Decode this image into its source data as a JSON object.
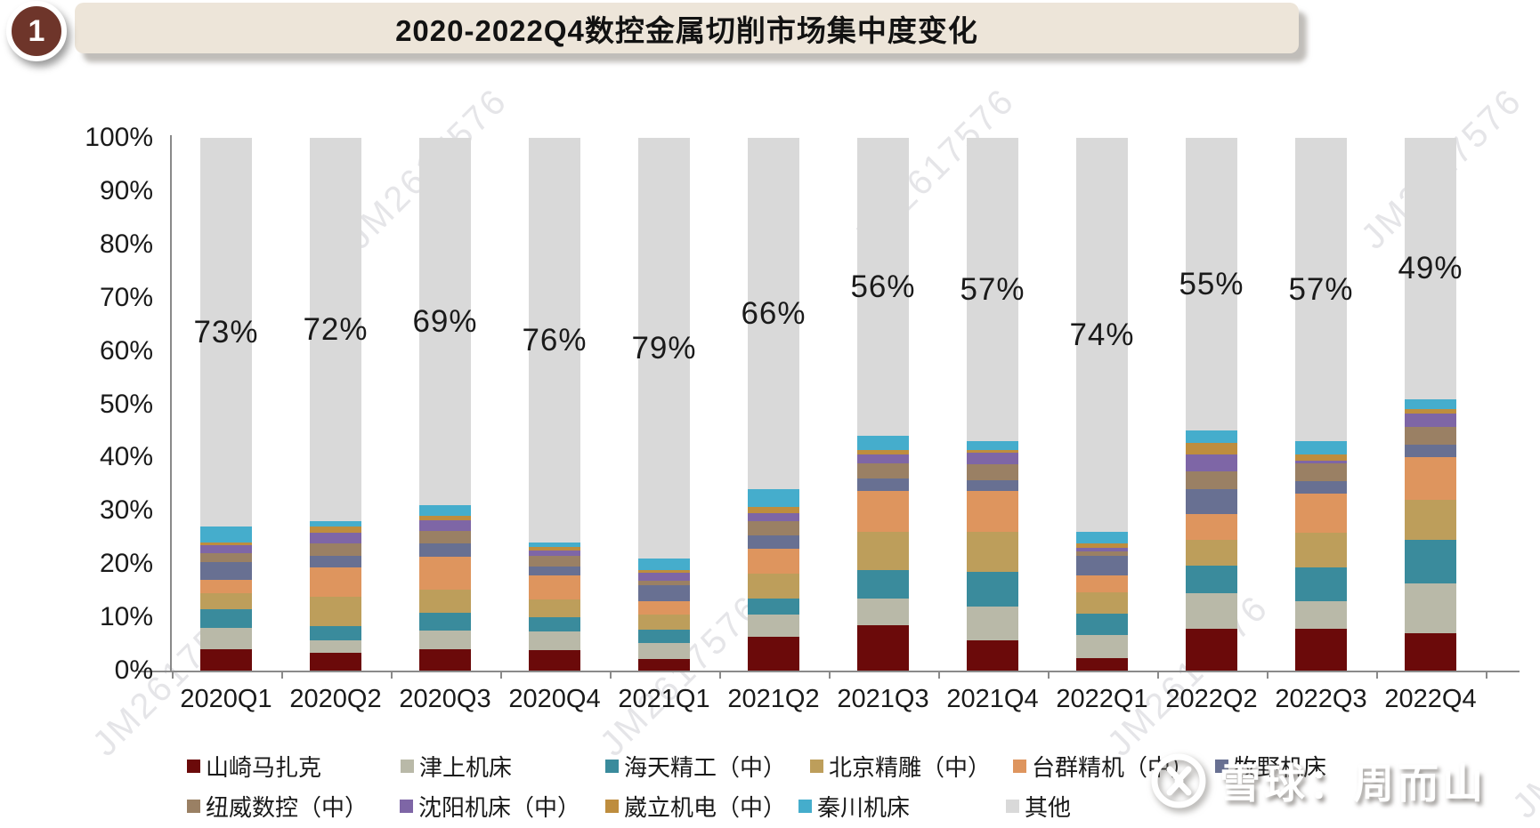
{
  "badge": {
    "number": "1"
  },
  "header": {
    "title": "2020-2022Q4数控金属切削市场集中度变化"
  },
  "watermark": {
    "text": "JM2617576"
  },
  "footer_logo": {
    "text": "雪球：周而山"
  },
  "chart_data": {
    "type": "bar",
    "stacked": true,
    "title": "2020-2022Q4数控金属切削市场集中度变化",
    "xlabel": "",
    "ylabel": "",
    "ylim": [
      0,
      100
    ],
    "grid": false,
    "legend_position": "bottom",
    "y_ticks": [
      "0%",
      "10%",
      "20%",
      "30%",
      "40%",
      "50%",
      "60%",
      "70%",
      "80%",
      "90%",
      "100%"
    ],
    "categories": [
      "2020Q1",
      "2020Q2",
      "2020Q3",
      "2020Q4",
      "2021Q1",
      "2021Q2",
      "2021Q3",
      "2021Q4",
      "2022Q1",
      "2022Q2",
      "2022Q3",
      "2022Q4"
    ],
    "series": [
      {
        "name": "山崎马扎克",
        "color": "#6B0A0A",
        "values": [
          4.0,
          3.3,
          4.0,
          3.9,
          2.1,
          6.4,
          8.5,
          5.6,
          2.4,
          7.9,
          7.9,
          7.0
        ]
      },
      {
        "name": "津上机床",
        "color": "#B9B9A8",
        "values": [
          4.0,
          2.3,
          3.5,
          3.5,
          3.1,
          4.1,
          5.0,
          6.4,
          4.3,
          6.7,
          5.1,
          9.3
        ]
      },
      {
        "name": "海天精工（中）",
        "color": "#3A8B9C",
        "values": [
          3.6,
          2.8,
          3.4,
          2.6,
          2.4,
          3.1,
          5.3,
          6.5,
          4.0,
          5.1,
          6.3,
          8.2
        ]
      },
      {
        "name": "北京精雕（中）",
        "color": "#BD9E5B",
        "values": [
          3.0,
          5.5,
          4.3,
          3.4,
          2.9,
          4.6,
          7.2,
          7.6,
          4.0,
          4.8,
          6.6,
          7.6
        ]
      },
      {
        "name": "台群精机（中）",
        "color": "#DE955E",
        "values": [
          2.5,
          5.5,
          6.2,
          4.5,
          2.6,
          4.6,
          7.8,
          7.6,
          3.2,
          4.8,
          7.4,
          8.0
        ]
      },
      {
        "name": "牧野机床",
        "color": "#687092",
        "values": [
          3.3,
          2.1,
          2.5,
          1.6,
          2.9,
          2.6,
          2.3,
          2.0,
          3.6,
          4.7,
          2.3,
          2.3
        ]
      },
      {
        "name": "纽威数控（中）",
        "color": "#9A8064",
        "values": [
          1.7,
          2.4,
          2.3,
          2.0,
          0.9,
          2.6,
          2.8,
          3.0,
          0.9,
          3.4,
          3.3,
          3.4
        ]
      },
      {
        "name": "沈阳机床（中）",
        "color": "#7E66A6",
        "values": [
          1.4,
          2.0,
          2.0,
          1.0,
          1.4,
          1.6,
          1.7,
          2.2,
          0.7,
          3.1,
          0.5,
          2.5
        ]
      },
      {
        "name": "崴立机电（中）",
        "color": "#BE8D3E",
        "values": [
          0.6,
          1.1,
          0.9,
          0.7,
          0.5,
          1.1,
          0.8,
          0.5,
          0.7,
          2.3,
          1.2,
          0.8
        ]
      },
      {
        "name": "秦川机床",
        "color": "#45ADCC",
        "values": [
          2.9,
          1.0,
          1.9,
          0.8,
          2.2,
          3.3,
          2.6,
          1.6,
          2.2,
          2.2,
          2.4,
          1.9
        ]
      },
      {
        "name": "其他",
        "color": "#D9D9D9",
        "values": [
          73,
          72,
          69,
          76,
          79,
          66,
          56,
          57,
          74,
          55,
          57,
          49
        ]
      }
    ],
    "bar_total_labels": [
      "73%",
      "72%",
      "69%",
      "76%",
      "79%",
      "66%",
      "56%",
      "57%",
      "74%",
      "55%",
      "57%",
      "49%"
    ]
  }
}
